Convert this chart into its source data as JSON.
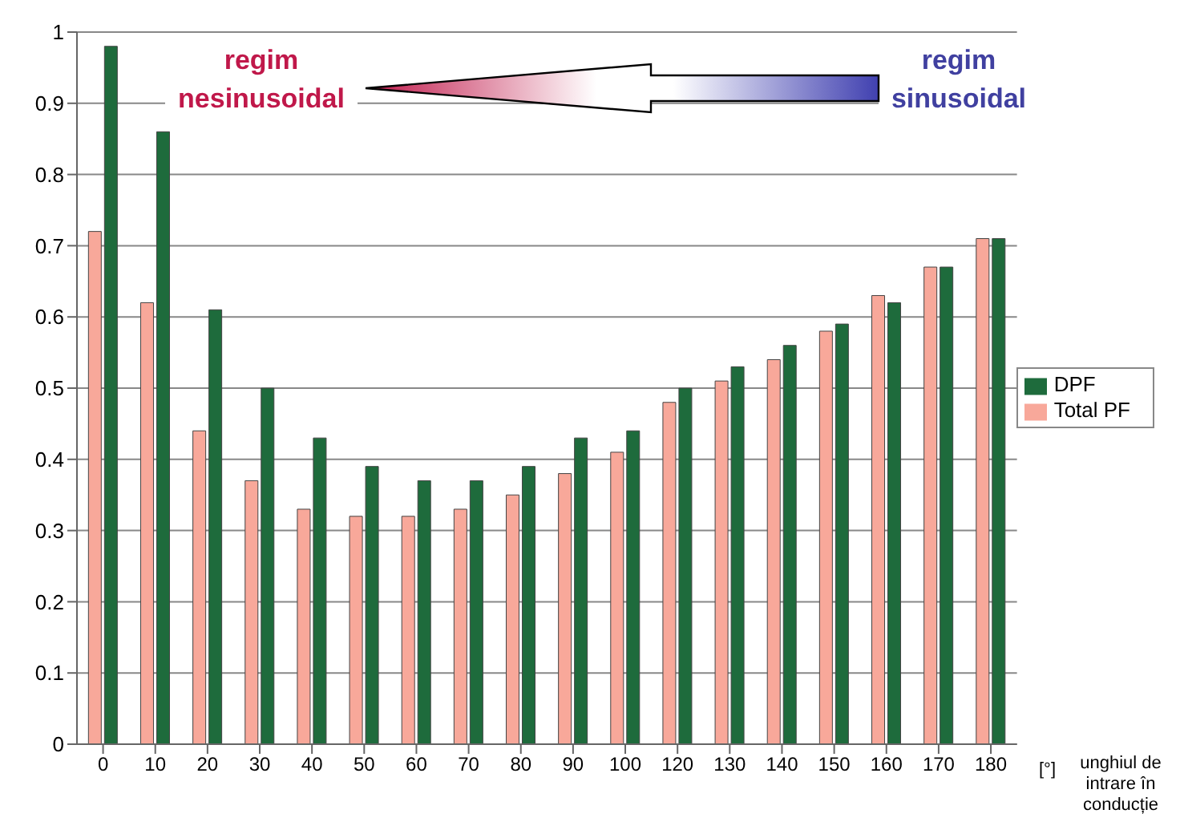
{
  "chart_data": {
    "type": "bar",
    "xlabel": "unghiul de intrare în conducție",
    "categories": [
      "0",
      "10",
      "20",
      "30",
      "40",
      "50",
      "60",
      "70",
      "80",
      "90",
      "100",
      "120",
      "130",
      "140",
      "150",
      "160",
      "170",
      "180"
    ],
    "series": [
      {
        "name": "Total PF",
        "color": "#f8a89a",
        "values": [
          0.72,
          0.62,
          0.44,
          0.37,
          0.33,
          0.32,
          0.32,
          0.33,
          0.35,
          0.38,
          0.41,
          0.48,
          0.51,
          0.54,
          0.58,
          0.63,
          0.67,
          0.71
        ]
      },
      {
        "name": "DPF",
        "color": "#1e6b3c",
        "values": [
          0.98,
          0.86,
          0.61,
          0.5,
          0.43,
          0.39,
          0.37,
          0.37,
          0.39,
          0.43,
          0.44,
          0.5,
          0.53,
          0.56,
          0.59,
          0.62,
          0.67,
          0.71
        ]
      }
    ],
    "ylim": [
      0,
      1
    ],
    "yticks": [
      0,
      0.1,
      0.2,
      0.3,
      0.4,
      0.5,
      0.6,
      0.7,
      0.8,
      0.9,
      1
    ],
    "grid": "y",
    "legend": "right",
    "annotations": [
      "regim nesinusoidal",
      "regim sinusoidal",
      "[°]"
    ]
  }
}
